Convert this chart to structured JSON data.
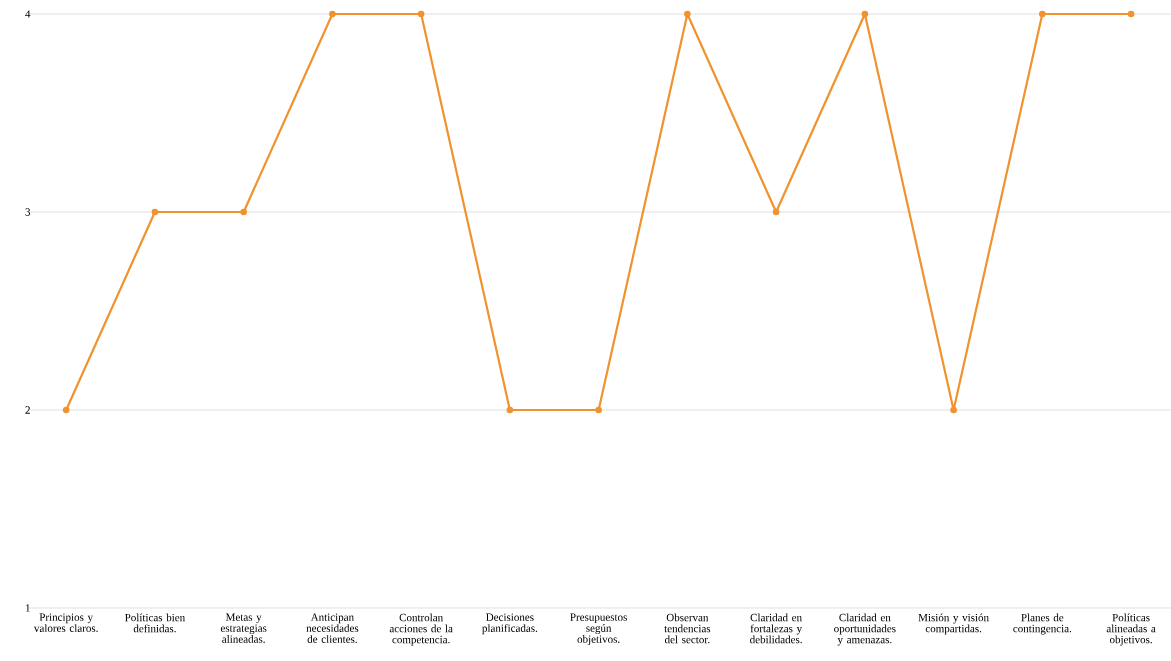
{
  "chart_data": {
    "type": "line",
    "categories": [
      "Principios y valores claros.",
      "Políticas bien definidas.",
      "Metas y estrategias alineadas.",
      "Anticipan necesidades de clientes.",
      "Controlan acciones de la competencia.",
      "Decisiones planificadas.",
      "Presupuestos según objetivos.",
      "Observan tendencias del sector.",
      "Claridad en fortalezas y debilidades.",
      "Claridad en oportunidades y amenazas.",
      "Misión y visión compartidas.",
      "Planes de contingencia.",
      "Políticas alineadas a objetivos."
    ],
    "values": [
      2,
      3,
      3,
      4,
      4,
      2,
      2,
      4,
      3,
      4,
      2,
      4,
      4
    ],
    "color": "#f0922e",
    "ylim": [
      1,
      4
    ],
    "yticks": [
      1,
      2,
      3,
      4
    ],
    "grid": "y",
    "marker": "circle"
  }
}
